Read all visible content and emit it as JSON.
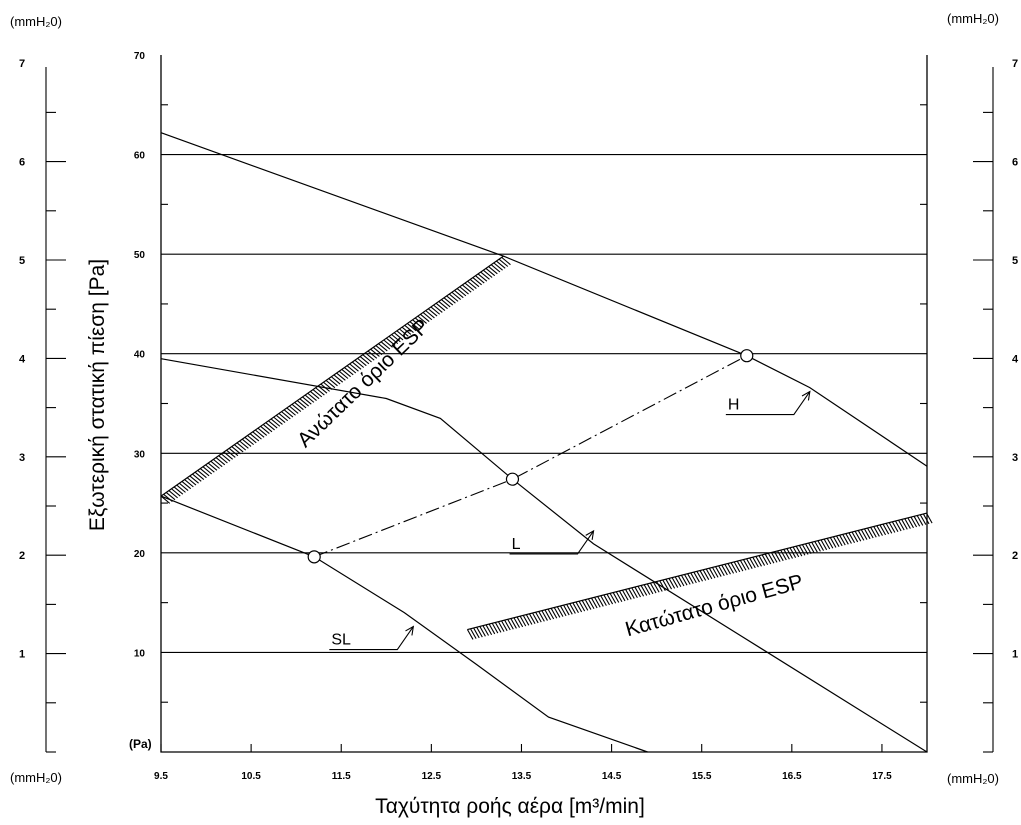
{
  "chart_data": {
    "type": "line",
    "title": "",
    "xlabel": "Ταχύτητα ροής αέρα [m³/min]",
    "ylabel": "Εξωτερική στατική πίεση [Pa]",
    "ylabel_unit_tag": "(Pa)",
    "secondary_unit": "(mmH₂0)",
    "xlim": [
      9.5,
      18.0
    ],
    "ylim": [
      0,
      70
    ],
    "x_ticks": [
      "9.5",
      "10.5",
      "11.5",
      "12.5",
      "13.5",
      "14.5",
      "15.5",
      "16.5",
      "17.5"
    ],
    "x_tick_values": [
      9.5,
      10.5,
      11.5,
      12.5,
      13.5,
      14.5,
      15.5,
      16.5,
      17.5
    ],
    "y_ticks": [
      "10",
      "20",
      "30",
      "40",
      "50",
      "60",
      "70"
    ],
    "y_tick_values": [
      10,
      20,
      30,
      40,
      50,
      60,
      70
    ],
    "mm_ticks": [
      "1",
      "2",
      "3",
      "4",
      "5",
      "6",
      "7"
    ],
    "grid": "horizontal",
    "series": [
      {
        "name": "H",
        "label_at": [
          16.7,
          36.2
        ],
        "points": [
          [
            9.5,
            62.2
          ],
          [
            13.3,
            49.8
          ],
          [
            16.0,
            39.8
          ],
          [
            16.7,
            36.6
          ],
          [
            18.0,
            28.7
          ]
        ]
      },
      {
        "name": "L",
        "label_at": [
          14.3,
          22.2
        ],
        "points": [
          [
            9.5,
            39.5
          ],
          [
            12.0,
            35.5
          ],
          [
            12.6,
            33.5
          ],
          [
            13.4,
            27.4
          ],
          [
            14.3,
            20.9
          ],
          [
            18.0,
            0.0
          ]
        ]
      },
      {
        "name": "SL",
        "label_at": [
          12.3,
          12.6
        ],
        "points": [
          [
            9.5,
            25.7
          ],
          [
            11.2,
            19.6
          ],
          [
            12.2,
            14.0
          ],
          [
            13.0,
            8.8
          ],
          [
            13.8,
            3.5
          ],
          [
            14.9,
            0.0
          ]
        ]
      }
    ],
    "operating_line": [
      [
        11.2,
        19.6
      ],
      [
        13.4,
        27.4
      ],
      [
        16.0,
        39.8
      ]
    ],
    "bands": [
      {
        "label": "Ανώτατο όριο ESP",
        "from": [
          9.5,
          25.7
        ],
        "to": [
          13.3,
          49.8
        ]
      },
      {
        "label": "Κατώτατο όριο ESP",
        "from": [
          12.9,
          12.3
        ],
        "to": [
          18.0,
          24.0
        ]
      }
    ]
  }
}
